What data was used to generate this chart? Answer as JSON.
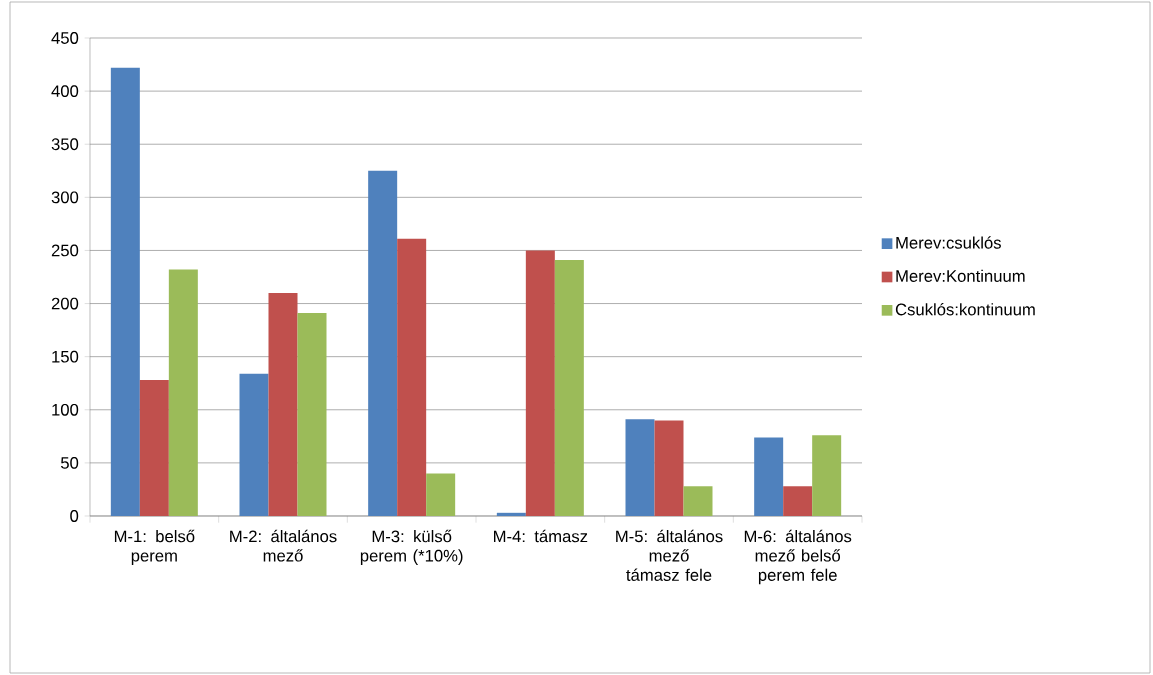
{
  "chart_data": {
    "type": "bar",
    "categories": [
      "M-1: belső perem",
      "M-2: általános mező",
      "M-3: külső perem (*10%)",
      "M-4: támasz",
      "M-5: általános mező támasz fele",
      "M-6: általános mező belső perem fele"
    ],
    "series": [
      {
        "name": "Merev:csuklós",
        "color": "#4f81bd",
        "values": [
          422,
          134,
          325,
          3,
          91,
          74
        ]
      },
      {
        "name": "Merev:Kontinuum",
        "color": "#c0504d",
        "values": [
          128,
          210,
          261,
          250,
          90,
          28
        ]
      },
      {
        "name": "Csuklós:kontinuum",
        "color": "#9bbb59",
        "values": [
          232,
          191,
          40,
          241,
          28,
          76
        ]
      }
    ],
    "ylim": [
      0,
      450
    ],
    "yticks": [
      0,
      50,
      100,
      150,
      200,
      250,
      300,
      350,
      400,
      450
    ],
    "grid": "y",
    "legend": "right"
  }
}
